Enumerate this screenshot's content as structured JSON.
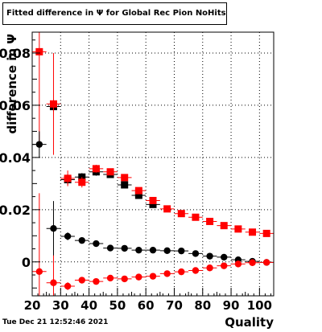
{
  "title": "Fitted difference in  Ψ  for Global Rec Pion NoHits",
  "timestamp": "Tue Dec 21 12:52:46 2021",
  "chart_data": {
    "type": "scatter",
    "title": "Fitted difference in  Ψ  for Global Rec Pion NoHits",
    "xlabel": "Quality",
    "ylabel": "difference in  Ψ",
    "xlim": [
      20,
      105
    ],
    "ylim": [
      -0.013,
      0.088
    ],
    "xticks": [
      20,
      30,
      40,
      50,
      60,
      70,
      80,
      90,
      100
    ],
    "xtick_labels": [
      "20",
      "30",
      "40",
      "50",
      "60",
      "70",
      "80",
      "90",
      "100"
    ],
    "yticks": [
      0,
      0.02,
      0.04,
      0.06,
      0.08
    ],
    "ytick_labels": [
      "0",
      "0.02",
      "0.04",
      "0.06",
      "0.08"
    ],
    "grid": true,
    "series": [
      {
        "marker": "square",
        "color": "#000000",
        "x": [
          27.5,
          32.5,
          37.5,
          42.5,
          47.5,
          52.5,
          57.5,
          62.5
        ],
        "y": [
          0.0595,
          0.0315,
          0.0325,
          0.0345,
          0.0335,
          0.0295,
          0.0255,
          0.022
        ],
        "yerr": [
          0.002,
          0.002,
          0.0015,
          0.0015,
          0.0012,
          0.0012,
          0.0012,
          0.0012
        ]
      },
      {
        "marker": "square",
        "color": "#ff0000",
        "x": [
          22.5,
          27.5,
          32.5,
          37.5,
          42.5,
          47.5,
          52.5,
          57.5,
          62.5,
          67.5,
          72.5,
          77.5,
          82.5,
          87.5,
          92.5,
          97.5,
          102.5
        ],
        "y": [
          0.0805,
          0.0605,
          0.032,
          0.0305,
          0.0357,
          0.0345,
          0.0323,
          0.0273,
          0.0235,
          0.0203,
          0.0185,
          0.0171,
          0.0155,
          0.0139,
          0.0126,
          0.0114,
          0.0109
        ],
        "yerr": [
          0.035,
          0.0195,
          0.003,
          0.002,
          0.0015,
          0.0012,
          0.001,
          0.001,
          0.001,
          0.001,
          0.0008,
          0.0008,
          0.0008,
          0.0008,
          0.0008,
          0.0008,
          0.0008
        ]
      },
      {
        "marker": "circle",
        "color": "#000000",
        "x": [
          22.5,
          27.5,
          32.5,
          37.5,
          42.5,
          47.5,
          52.5,
          57.5,
          62.5,
          67.5,
          72.5,
          77.5,
          82.5,
          87.5,
          92.5,
          97.5,
          102.5
        ],
        "y": [
          0.045,
          0.0128,
          0.0098,
          0.0082,
          0.007,
          0.0053,
          0.0052,
          0.0045,
          0.0045,
          0.0043,
          0.0042,
          0.0032,
          0.0022,
          0.0018,
          0.0008,
          0.0002,
          -0.0002
        ],
        "yerr": [
          0.005,
          0.0105,
          0.0015,
          0.001,
          0.0008,
          0.0007,
          0.0006,
          0.0006,
          0.0006,
          0.0006,
          0.0006,
          0.0006,
          0.0006,
          0.0006,
          0.0006,
          0.0006,
          0.0006
        ]
      },
      {
        "marker": "circle",
        "color": "#ff0000",
        "x": [
          22.5,
          27.5,
          32.5,
          37.5,
          42.5,
          47.5,
          52.5,
          57.5,
          62.5,
          67.5,
          72.5,
          77.5,
          82.5,
          87.5,
          92.5,
          97.5,
          102.5
        ],
        "y": [
          -0.0037,
          -0.008,
          -0.0093,
          -0.007,
          -0.0075,
          -0.0062,
          -0.0065,
          -0.0058,
          -0.0055,
          -0.0045,
          -0.0038,
          -0.0033,
          -0.0023,
          -0.0015,
          -0.0008,
          -0.0003,
          -0.0002
        ],
        "yerr": [
          0.03,
          0.0105,
          0.0015,
          0.001,
          0.0008,
          0.0007,
          0.0006,
          0.0006,
          0.0006,
          0.0006,
          0.0006,
          0.0006,
          0.0006,
          0.0006,
          0.0006,
          0.0006,
          0.0006
        ]
      }
    ]
  }
}
